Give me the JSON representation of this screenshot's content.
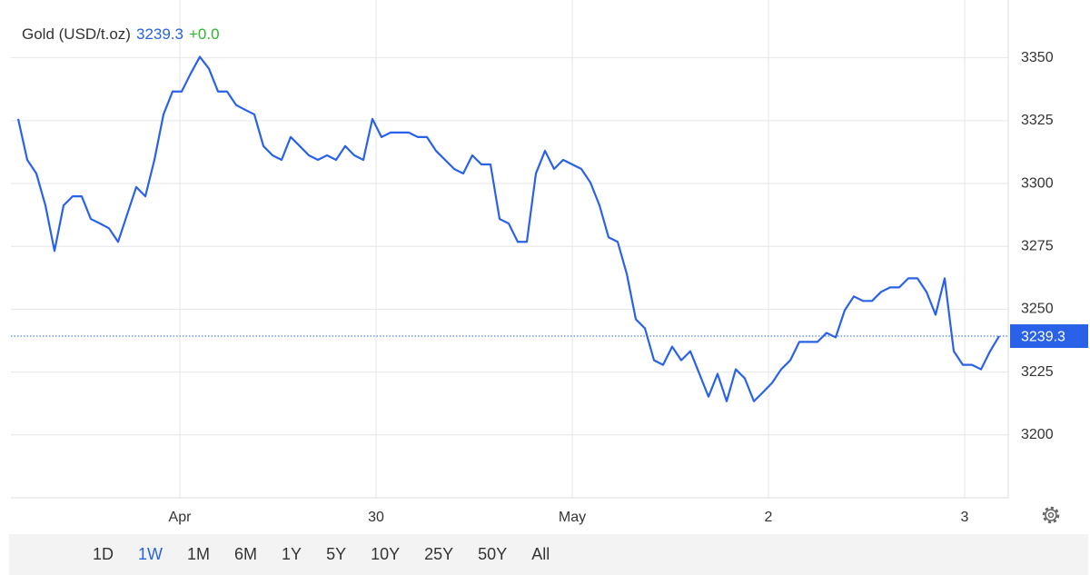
{
  "chart_data": {
    "type": "line",
    "series": [
      {
        "name": "Gold (USD/t.oz)",
        "color": "#2962e8",
        "values": [
          3325.7,
          3309.4,
          3304.0,
          3291.3,
          3273.2,
          3291.3,
          3294.9,
          3294.9,
          3285.9,
          3284.1,
          3282.2,
          3276.8,
          3287.7,
          3298.6,
          3294.9,
          3309.4,
          3327.5,
          3336.6,
          3336.6,
          3343.8,
          3350.4,
          3345.7,
          3336.6,
          3336.6,
          3331.2,
          3329.3,
          3327.5,
          3314.9,
          3311.2,
          3309.4,
          3318.5,
          3314.9,
          3311.2,
          3309.4,
          3311.2,
          3309.4,
          3314.9,
          3311.2,
          3309.4,
          3325.7,
          3318.5,
          3320.3,
          3320.3,
          3320.3,
          3318.5,
          3318.5,
          3313.0,
          3309.4,
          3305.8,
          3304.0,
          3311.2,
          3307.6,
          3307.6,
          3285.9,
          3284.1,
          3276.8,
          3276.8,
          3304.0,
          3313.0,
          3305.8,
          3309.4,
          3307.6,
          3305.8,
          3300.4,
          3291.3,
          3278.6,
          3276.8,
          3264.1,
          3246.0,
          3242.4,
          3229.7,
          3227.9,
          3235.1,
          3229.7,
          3233.3,
          3224.3,
          3215.2,
          3224.3,
          3213.4,
          3226.1,
          3222.5,
          3213.4,
          3217.0,
          3220.7,
          3226.1,
          3229.7,
          3237.0,
          3237.0,
          3237.0,
          3240.6,
          3238.8,
          3249.6,
          3255.1,
          3253.3,
          3253.3,
          3256.9,
          3258.7,
          3258.7,
          3262.3,
          3262.3,
          3256.9,
          3247.8,
          3262.3,
          3233.3,
          3227.9,
          3227.9,
          3226.1,
          3233.3,
          3239.3
        ]
      }
    ],
    "x": [
      0,
      1,
      2,
      3,
      4,
      5,
      6,
      7,
      8,
      9,
      10,
      11,
      12,
      13,
      14,
      15,
      16,
      17,
      18,
      19,
      20,
      21,
      22,
      23,
      24,
      25,
      26,
      27,
      28,
      29,
      30,
      31,
      32,
      33,
      34,
      35,
      36,
      37,
      38,
      39,
      40,
      41,
      42,
      43,
      44,
      45,
      46,
      47,
      48,
      49,
      50,
      51,
      52,
      53,
      54,
      55,
      56,
      57,
      58,
      59,
      60,
      61,
      62,
      63,
      64,
      65,
      66,
      67,
      68,
      69,
      70,
      71,
      72,
      73,
      74,
      75,
      76,
      77,
      78,
      79,
      80,
      81,
      82,
      83,
      84,
      85,
      86,
      87,
      88,
      89,
      90,
      91,
      92,
      93,
      94,
      95,
      96,
      97,
      98,
      99,
      100,
      101,
      102,
      103,
      104,
      105,
      106,
      107,
      108
    ],
    "xlim": [
      -0.8,
      109
    ],
    "xticks": [
      {
        "value": 17.8,
        "label": "Apr"
      },
      {
        "value": 39.4,
        "label": "30"
      },
      {
        "value": 61,
        "label": "May"
      },
      {
        "value": 82.6,
        "label": "2"
      },
      {
        "value": 104.2,
        "label": "3"
      }
    ],
    "ylim": [
      3175,
      3373
    ],
    "yticks": [
      3200,
      3225,
      3250,
      3275,
      3300,
      3325,
      3350
    ],
    "grid": true,
    "price": 3239.3,
    "change": "+0.0",
    "ranges": [
      "1D",
      "1W",
      "1M",
      "6M",
      "1Y",
      "5Y",
      "10Y",
      "25Y",
      "50Y",
      "All"
    ],
    "selected_range": "1W"
  }
}
